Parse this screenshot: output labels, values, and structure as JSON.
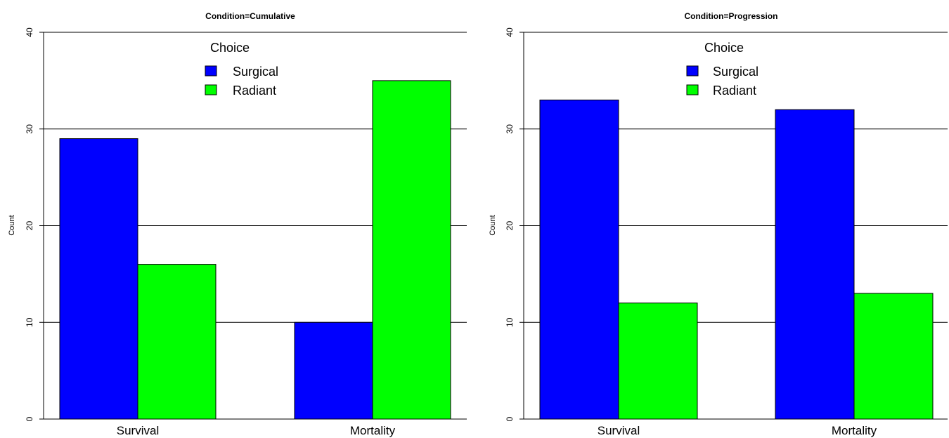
{
  "colors": {
    "surgical": "#0000ff",
    "radiant": "#00ff00",
    "grid": "#000000"
  },
  "chart_data": [
    {
      "type": "bar",
      "title": "Condition=Cumulative",
      "ylabel": "Count",
      "xlabel": "",
      "ylim": [
        0,
        40
      ],
      "yticks": [
        "0",
        "10",
        "20",
        "30",
        "40"
      ],
      "categories": [
        "Survival",
        "Mortality"
      ],
      "legend": {
        "title": "Choice",
        "placement": "top-center"
      },
      "grid": "horizontal",
      "series": [
        {
          "name": "Surgical",
          "values": [
            29,
            10
          ]
        },
        {
          "name": "Radiant",
          "values": [
            16,
            35
          ]
        }
      ]
    },
    {
      "type": "bar",
      "title": "Condition=Progression",
      "ylabel": "Count",
      "xlabel": "",
      "ylim": [
        0,
        40
      ],
      "yticks": [
        "0",
        "10",
        "20",
        "30",
        "40"
      ],
      "categories": [
        "Survival",
        "Mortality"
      ],
      "legend": {
        "title": "Choice",
        "placement": "top-center"
      },
      "grid": "horizontal",
      "series": [
        {
          "name": "Surgical",
          "values": [
            33,
            32
          ]
        },
        {
          "name": "Radiant",
          "values": [
            12,
            13
          ]
        }
      ]
    }
  ]
}
